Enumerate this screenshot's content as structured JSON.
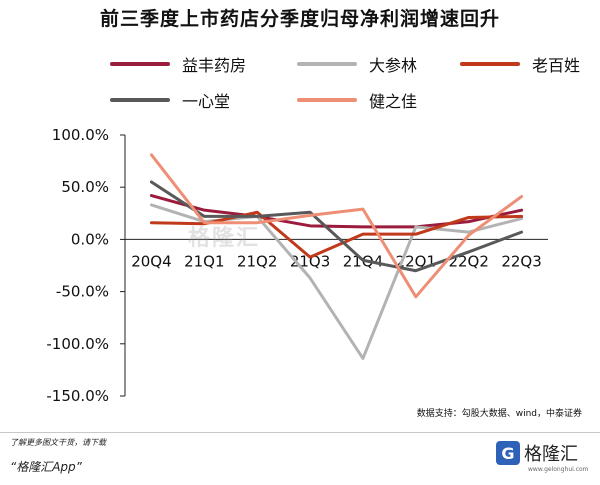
{
  "title": "前三季度上市药店分季度归母净利润增速回升",
  "source": "数据支持：勾股大数据、wind，中泰证券",
  "watermark": "格隆汇",
  "footer": {
    "hint": "了解更多图文干货，请下载",
    "app": "“格隆汇App”",
    "logo_text": "格隆汇",
    "logo_url": "www.gelonghui.com"
  },
  "chart_data": {
    "type": "line",
    "title": "前三季度上市药店分季度归母净利润增速回升",
    "x": [
      "20Q4",
      "21Q1",
      "21Q2",
      "21Q3",
      "21Q4",
      "22Q1",
      "22Q2",
      "22Q3"
    ],
    "ylim": [
      -150,
      100
    ],
    "yticks": [
      100,
      50,
      0,
      -50,
      -100,
      -150
    ],
    "ytick_labels": [
      "100.0%",
      "50.0%",
      "0.0%",
      "-50.0%",
      "-100.0%",
      "-150.0%"
    ],
    "legend_position": "top",
    "series": [
      {
        "name": "益丰药房",
        "color": "#9a1b3c",
        "values": [
          42,
          28,
          22,
          13,
          12,
          12,
          17,
          28
        ]
      },
      {
        "name": "大参林",
        "color": "#b3b3b3",
        "values": [
          33,
          17,
          22,
          -37,
          -114,
          12,
          7,
          20
        ]
      },
      {
        "name": "老百姓",
        "color": "#c0391a",
        "values": [
          16,
          15,
          26,
          -17,
          5,
          5,
          21,
          22
        ]
      },
      {
        "name": "一心堂",
        "color": "#595959",
        "values": [
          55,
          22,
          22,
          26,
          -20,
          -30,
          -12,
          7
        ]
      },
      {
        "name": "健之佳",
        "color": "#ee8e74",
        "values": [
          81,
          16,
          16,
          23,
          29,
          -55,
          4,
          41
        ]
      }
    ]
  }
}
